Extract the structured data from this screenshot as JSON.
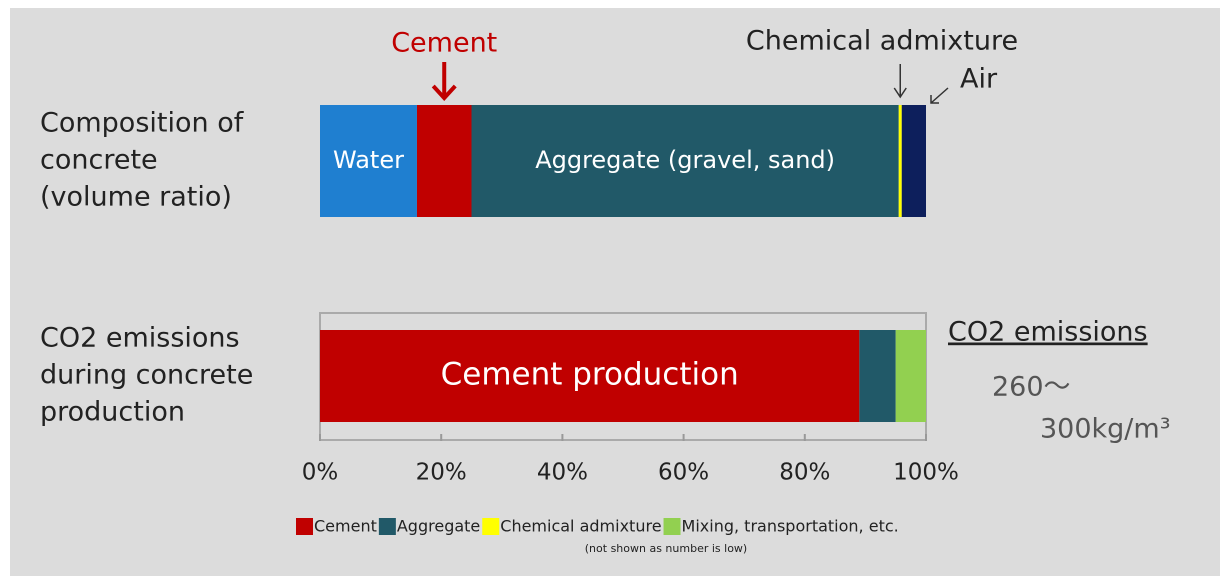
{
  "chart_data": {
    "type": "stacked-bar-h",
    "xlim": [
      0,
      100
    ],
    "xticks": [
      {
        "value": 0,
        "label": "0%"
      },
      {
        "value": 20,
        "label": "20%"
      },
      {
        "value": 40,
        "label": "40%"
      },
      {
        "value": 60,
        "label": "60%"
      },
      {
        "value": 80,
        "label": "80%"
      },
      {
        "value": 100,
        "label": "100%"
      }
    ],
    "bars": [
      {
        "label": [
          "Composition of",
          "concrete",
          "(volume ratio)"
        ],
        "segments": [
          {
            "name": "Water",
            "value": 16,
            "color": "#1f7fd0",
            "label_position": "inside"
          },
          {
            "name": "Cement",
            "value": 9,
            "color": "#c00000",
            "label_position": "above"
          },
          {
            "name": "Aggregate (gravel, sand)",
            "value": 70.5,
            "color": "#215968",
            "label_position": "inside"
          },
          {
            "name": "Chemical admixture",
            "value": 0.5,
            "color": "#ffff00",
            "label_position": "above"
          },
          {
            "name": "Air",
            "value": 4,
            "color": "#0d1f5c",
            "label_position": "above"
          }
        ]
      },
      {
        "label": [
          "CO2 emissions",
          "during concrete",
          "production"
        ],
        "segments": [
          {
            "name": "Cement production",
            "value": 89,
            "color": "#c00000",
            "label_position": "inside"
          },
          {
            "value": 6,
            "color": "#215968"
          },
          {
            "value": 5,
            "color": "#92d050"
          }
        ]
      }
    ],
    "side_title": "CO2 emissions",
    "side_value": [
      "260～",
      "300kg/m³"
    ],
    "legend": [
      {
        "name": "Cement",
        "color": "#c00000"
      },
      {
        "name": "Aggregate",
        "color": "#215968"
      },
      {
        "name": "Chemical admixture",
        "color": "#ffff00"
      },
      {
        "name": "Mixing, transportation, etc.",
        "color": "#92d050"
      }
    ],
    "legend_note": "(not shown as number is low)"
  }
}
